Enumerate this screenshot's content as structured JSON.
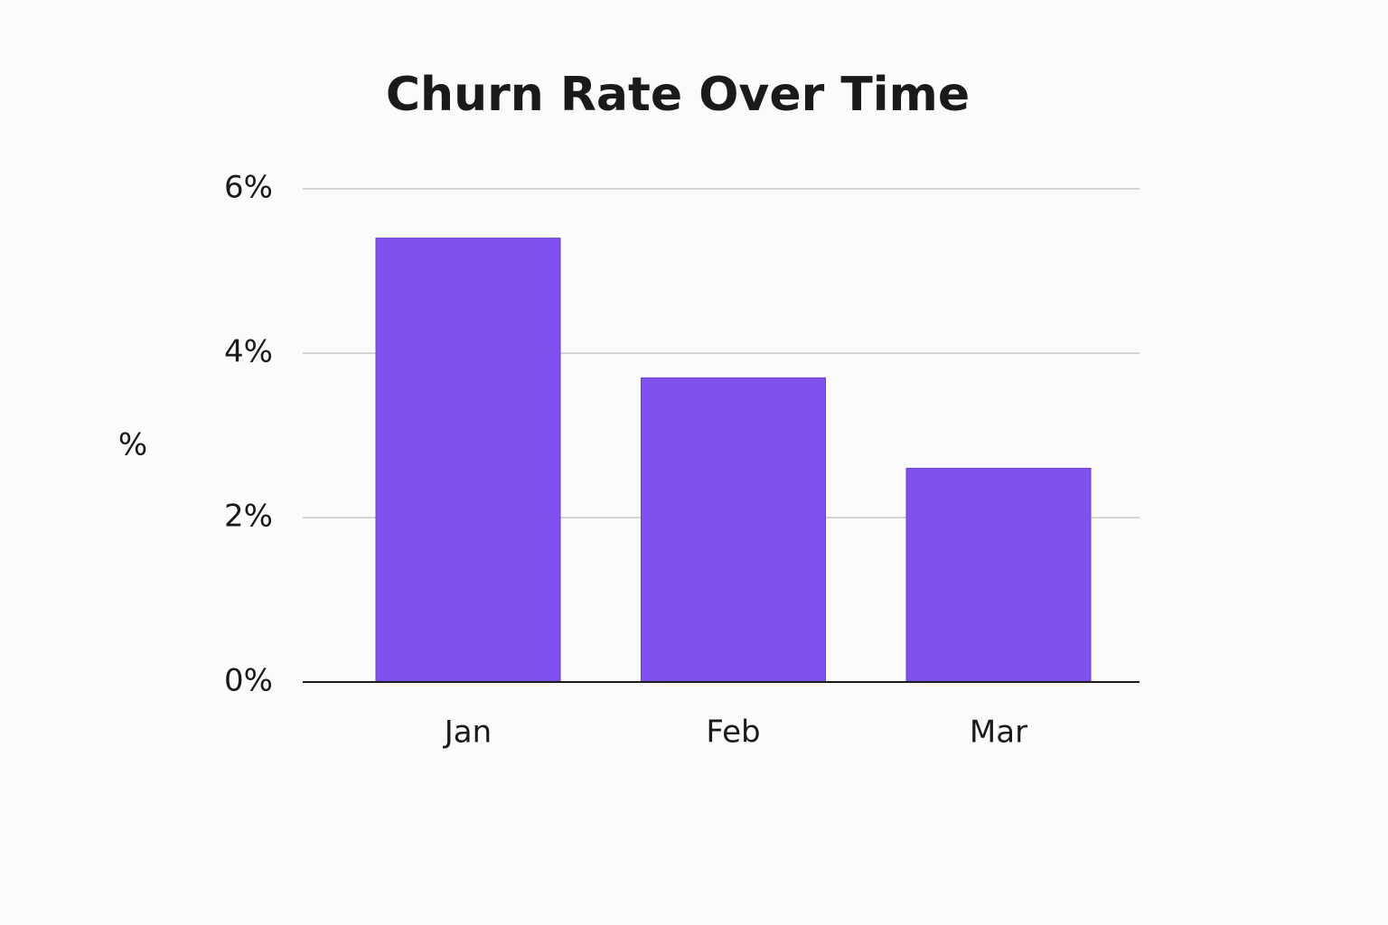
{
  "chart_data": {
    "type": "bar",
    "title": "Churn Rate Over Time",
    "y_label": "%",
    "categories": [
      "Jan",
      "Feb",
      "Mar"
    ],
    "values": [
      5.4,
      3.7,
      2.6
    ],
    "color": "#7f52ee",
    "ylim": [
      0,
      6
    ],
    "yticks": [
      {
        "value": 0,
        "label": "0%"
      },
      {
        "value": 2,
        "label": "2%"
      },
      {
        "value": 4,
        "label": "4%"
      },
      {
        "value": 6,
        "label": "6%"
      }
    ],
    "grid": true
  }
}
